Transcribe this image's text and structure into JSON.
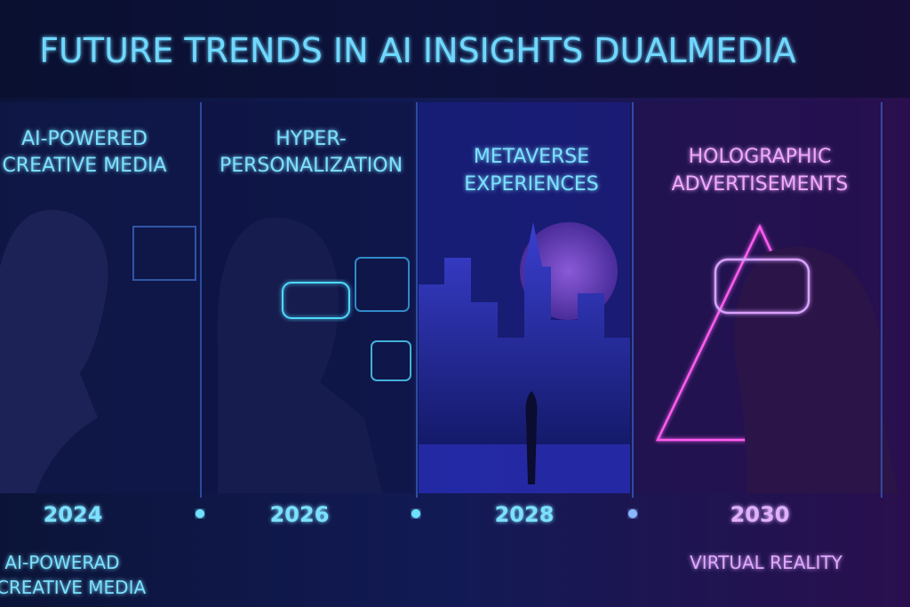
{
  "header": {
    "title": "FUTURE TRENDS IN AI INSIGHTS DUALMEDIA"
  },
  "panels": [
    {
      "heading": [
        "AI-POWERED",
        "CREATIVE MEDIA"
      ],
      "year": "2024"
    },
    {
      "heading": [
        "HYPER-",
        "PERSONALIZATION"
      ],
      "year": "2026"
    },
    {
      "heading": [
        "METAVERSE",
        "EXPERIENCES"
      ],
      "year": "2028"
    },
    {
      "heading": [
        "HOLOGRAPHIC",
        "ADVERTISEMENTS"
      ],
      "year": "2030"
    }
  ],
  "footer": {
    "left": [
      "AI-POWERAD",
      "CREATIVE MEDIA"
    ],
    "right": "VIRTUAL REALITY"
  }
}
